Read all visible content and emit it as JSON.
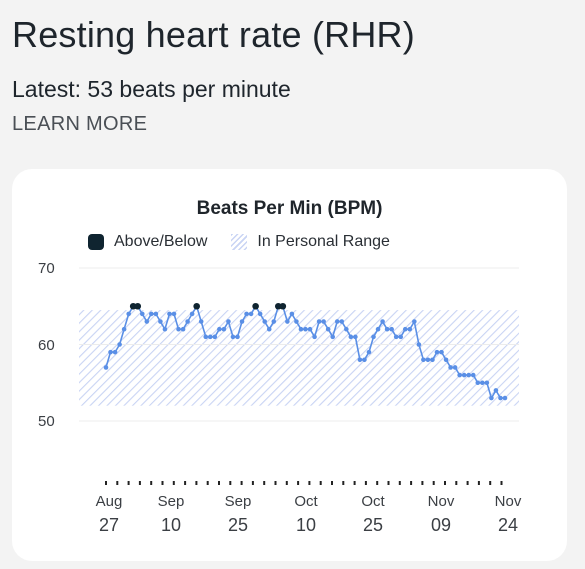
{
  "header": {
    "title": "Resting heart rate (RHR)",
    "latest": "Latest: 53 beats per minute",
    "learn_more": "LEARN MORE"
  },
  "colors": {
    "line": "#5a8fe6",
    "above_below": "#0f2430",
    "range_hatch": "#c9d4f4"
  },
  "chart_data": {
    "type": "line",
    "title": "Beats Per Min (BPM)",
    "legend": [
      {
        "label": "Above/Below",
        "style": "dark-square"
      },
      {
        "label": "In Personal Range",
        "style": "hatched"
      }
    ],
    "legend_placement": "top-left",
    "ylim": [
      50,
      70
    ],
    "yticks": [
      "70",
      "60",
      "50"
    ],
    "personal_range": [
      52,
      64.5
    ],
    "xticks": [
      {
        "month": "Aug",
        "day": "27"
      },
      {
        "month": "Sep",
        "day": "10"
      },
      {
        "month": "Sep",
        "day": "25"
      },
      {
        "month": "Oct",
        "day": "10"
      },
      {
        "month": "Oct",
        "day": "25"
      },
      {
        "month": "Nov",
        "day": "09"
      },
      {
        "month": "Nov",
        "day": "24"
      }
    ],
    "grid": true,
    "series": [
      {
        "values": [
          57,
          59,
          59,
          60,
          62,
          64,
          65,
          65,
          64,
          63,
          64,
          64,
          63,
          62,
          64,
          64,
          62,
          62,
          63,
          64,
          65,
          63,
          61,
          61,
          61,
          62,
          62,
          63,
          61,
          61,
          63,
          64,
          64,
          65,
          64,
          63,
          62,
          63,
          65,
          65,
          63,
          64,
          63,
          62,
          62,
          62,
          61,
          63,
          63,
          62,
          61,
          63,
          63,
          62,
          61,
          61,
          58,
          58,
          59,
          61,
          62,
          63,
          62,
          62,
          61,
          61,
          62,
          62,
          63,
          60,
          58,
          58,
          58,
          59,
          59,
          58,
          57,
          57,
          56,
          56,
          56,
          56,
          55,
          55,
          55,
          53,
          54,
          53,
          53
        ],
        "above_below_values": [
          65,
          65,
          65,
          65,
          65
        ]
      }
    ]
  }
}
